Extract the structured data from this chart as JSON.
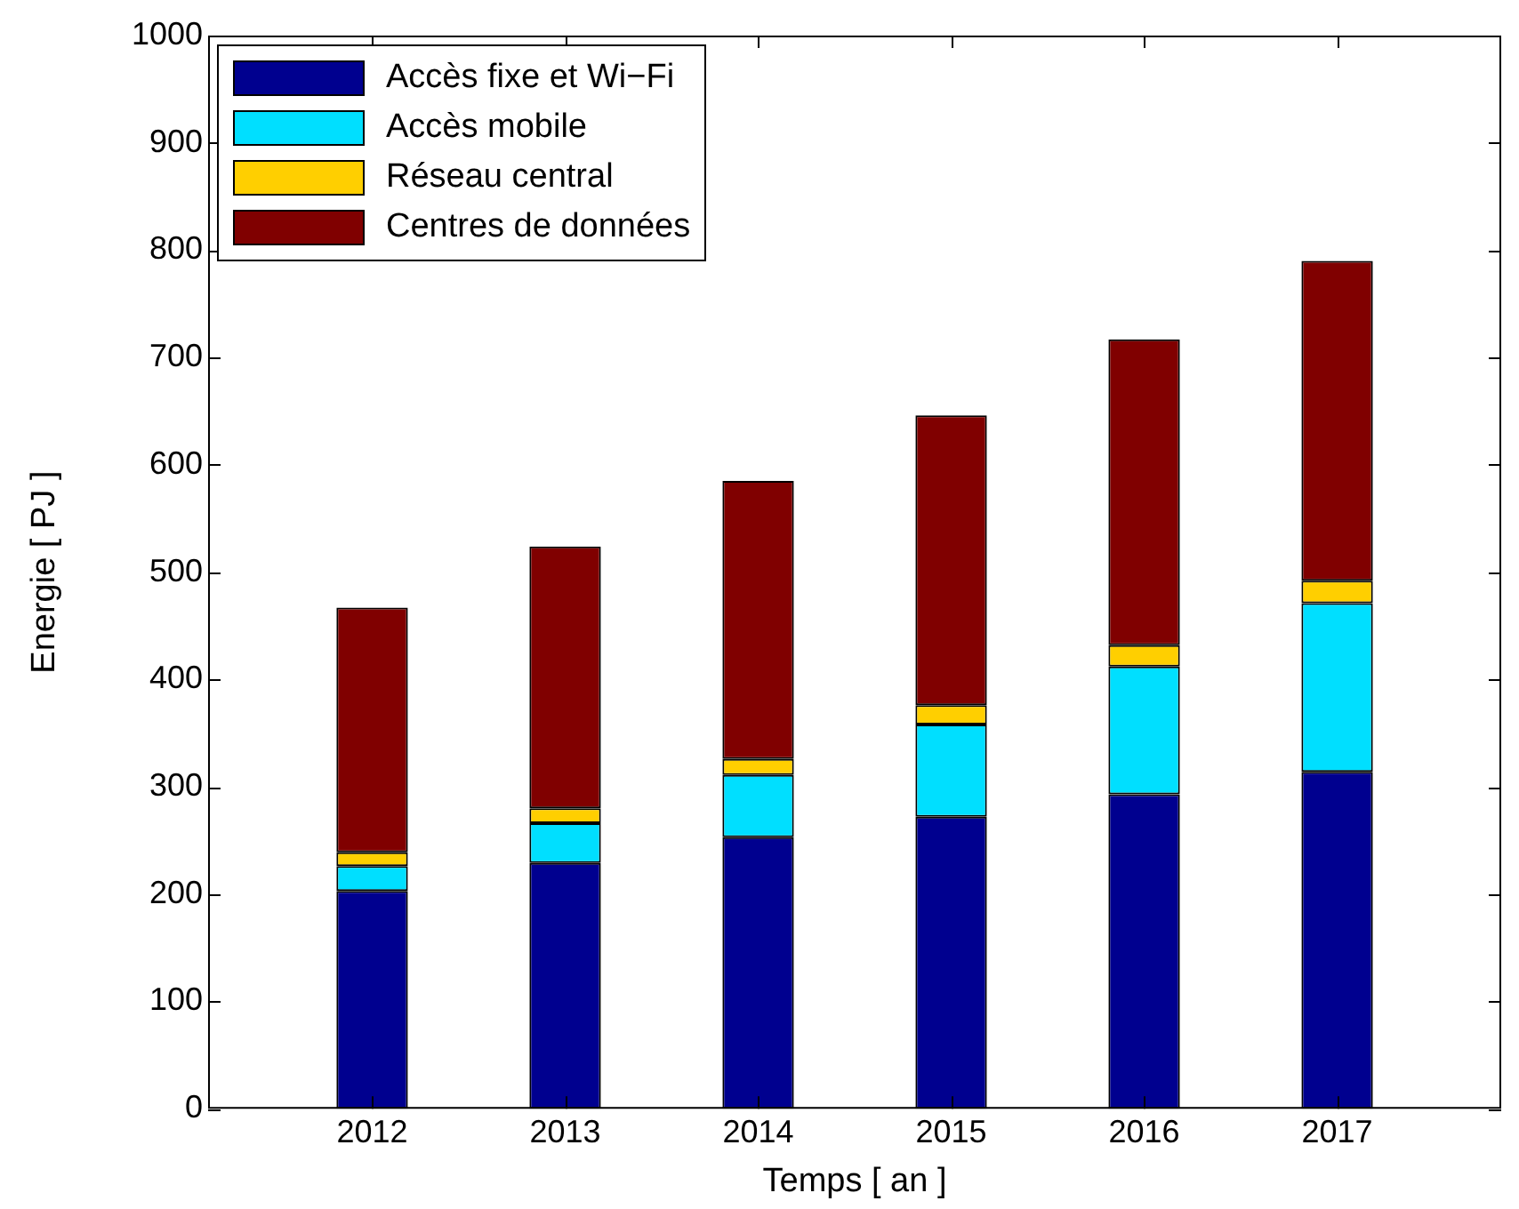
{
  "chart_data": {
    "type": "bar",
    "stacked": true,
    "xlabel": "Temps [ an ]",
    "ylabel": "Energie [ PJ ]",
    "x": [
      2012,
      2013,
      2014,
      2015,
      2016,
      2017
    ],
    "xlim": [
      2011.15,
      2017.85
    ],
    "xticks": [
      2012,
      2013,
      2014,
      2015,
      2016,
      2017
    ],
    "ylim": [
      0,
      1000
    ],
    "yticks": [
      0,
      100,
      200,
      300,
      400,
      500,
      600,
      700,
      800,
      900,
      1000
    ],
    "grid": false,
    "legend": "top left",
    "series": [
      {
        "name": "Accès fixe et Wi−Fi",
        "color": "#00008f",
        "values": [
          203,
          229,
          253,
          272,
          293,
          314
        ]
      },
      {
        "name": "Accès mobile",
        "color": "#00dfff",
        "values": [
          23,
          37,
          58,
          86,
          119,
          157
        ]
      },
      {
        "name": "Réseau central",
        "color": "#ffcf00",
        "values": [
          13,
          14,
          15,
          18,
          20,
          21
        ]
      },
      {
        "name": "Centres de données",
        "color": "#800000",
        "values": [
          228,
          244,
          259,
          270,
          285,
          298
        ]
      }
    ]
  }
}
